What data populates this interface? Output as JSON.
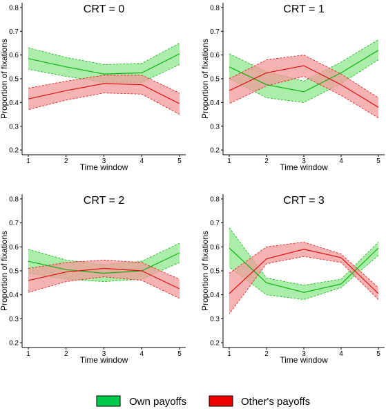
{
  "colors": {
    "own_line": "#11b211",
    "own_fill": "#8ee88e",
    "other_line": "#e01010",
    "other_fill": "#f29a9a",
    "legend_own": "#00c84a",
    "legend_other": "#ee0000"
  },
  "legend": {
    "own_label": "Own payoffs",
    "other_label": "Other's payoffs",
    "placement": "bottom-center"
  },
  "chart_data": [
    {
      "type": "line",
      "title": "CRT = 0",
      "xlabel": "Time window",
      "ylabel": "Proportion of fixations",
      "x": [
        1,
        2,
        3,
        4,
        5
      ],
      "xticks": [
        "1",
        "2",
        "3",
        "4",
        "5"
      ],
      "yticks": [
        "0.2",
        "0.3",
        "0.4",
        "0.5",
        "0.6",
        "0.7",
        "0.8"
      ],
      "ylim": [
        0.18,
        0.82
      ],
      "grid": false,
      "series": [
        {
          "name": "Own payoffs",
          "values": [
            0.585,
            0.55,
            0.52,
            0.525,
            0.605
          ],
          "lower": [
            0.54,
            0.51,
            0.485,
            0.485,
            0.56
          ],
          "upper": [
            0.63,
            0.59,
            0.56,
            0.565,
            0.65
          ]
        },
        {
          "name": "Other's payoffs",
          "values": [
            0.415,
            0.45,
            0.48,
            0.475,
            0.395
          ],
          "lower": [
            0.37,
            0.41,
            0.44,
            0.435,
            0.35
          ],
          "upper": [
            0.46,
            0.49,
            0.515,
            0.515,
            0.44
          ]
        }
      ]
    },
    {
      "type": "line",
      "title": "CRT = 1",
      "xlabel": "Time window",
      "ylabel": "Proportion of fixations",
      "x": [
        1,
        2,
        3,
        4,
        5
      ],
      "xticks": [
        "1",
        "2",
        "3",
        "4",
        "5"
      ],
      "yticks": [
        "0.2",
        "0.3",
        "0.4",
        "0.5",
        "0.6",
        "0.7",
        "0.8"
      ],
      "ylim": [
        0.18,
        0.82
      ],
      "grid": false,
      "series": [
        {
          "name": "Own payoffs",
          "values": [
            0.55,
            0.475,
            0.445,
            0.525,
            0.62
          ],
          "lower": [
            0.5,
            0.42,
            0.4,
            0.48,
            0.58
          ],
          "upper": [
            0.605,
            0.53,
            0.49,
            0.57,
            0.665
          ]
        },
        {
          "name": "Other's payoffs",
          "values": [
            0.45,
            0.525,
            0.555,
            0.475,
            0.38
          ],
          "lower": [
            0.395,
            0.47,
            0.51,
            0.43,
            0.335
          ],
          "upper": [
            0.5,
            0.58,
            0.6,
            0.52,
            0.42
          ]
        }
      ]
    },
    {
      "type": "line",
      "title": "CRT = 2",
      "xlabel": "Time window",
      "ylabel": "Proportion of fixations",
      "x": [
        1,
        2,
        3,
        4,
        5
      ],
      "xticks": [
        "1",
        "2",
        "3",
        "4",
        "5"
      ],
      "yticks": [
        "0.2",
        "0.3",
        "0.4",
        "0.5",
        "0.6",
        "0.7",
        "0.8"
      ],
      "ylim": [
        0.18,
        0.82
      ],
      "grid": false,
      "series": [
        {
          "name": "Own payoffs",
          "values": [
            0.54,
            0.505,
            0.49,
            0.5,
            0.575
          ],
          "lower": [
            0.49,
            0.465,
            0.455,
            0.465,
            0.535
          ],
          "upper": [
            0.59,
            0.545,
            0.525,
            0.54,
            0.615
          ]
        },
        {
          "name": "Other's payoffs",
          "values": [
            0.46,
            0.495,
            0.51,
            0.5,
            0.425
          ],
          "lower": [
            0.41,
            0.455,
            0.475,
            0.46,
            0.385
          ],
          "upper": [
            0.51,
            0.535,
            0.545,
            0.535,
            0.465
          ]
        }
      ]
    },
    {
      "type": "line",
      "title": "CRT = 3",
      "xlabel": "Time window",
      "ylabel": "Proportion of fixations",
      "x": [
        1,
        2,
        3,
        4,
        5
      ],
      "xticks": [
        "1",
        "2",
        "3",
        "4",
        "5"
      ],
      "yticks": [
        "0.2",
        "0.3",
        "0.4",
        "0.5",
        "0.6",
        "0.7",
        "0.8"
      ],
      "ylim": [
        0.18,
        0.82
      ],
      "grid": false,
      "series": [
        {
          "name": "Own payoffs",
          "values": [
            0.595,
            0.45,
            0.41,
            0.445,
            0.595
          ],
          "lower": [
            0.515,
            0.4,
            0.38,
            0.43,
            0.565
          ],
          "upper": [
            0.68,
            0.47,
            0.44,
            0.465,
            0.62
          ]
        },
        {
          "name": "Other's payoffs",
          "values": [
            0.405,
            0.55,
            0.59,
            0.555,
            0.405
          ],
          "lower": [
            0.32,
            0.53,
            0.56,
            0.535,
            0.38
          ],
          "upper": [
            0.49,
            0.6,
            0.62,
            0.57,
            0.43
          ]
        }
      ]
    }
  ]
}
